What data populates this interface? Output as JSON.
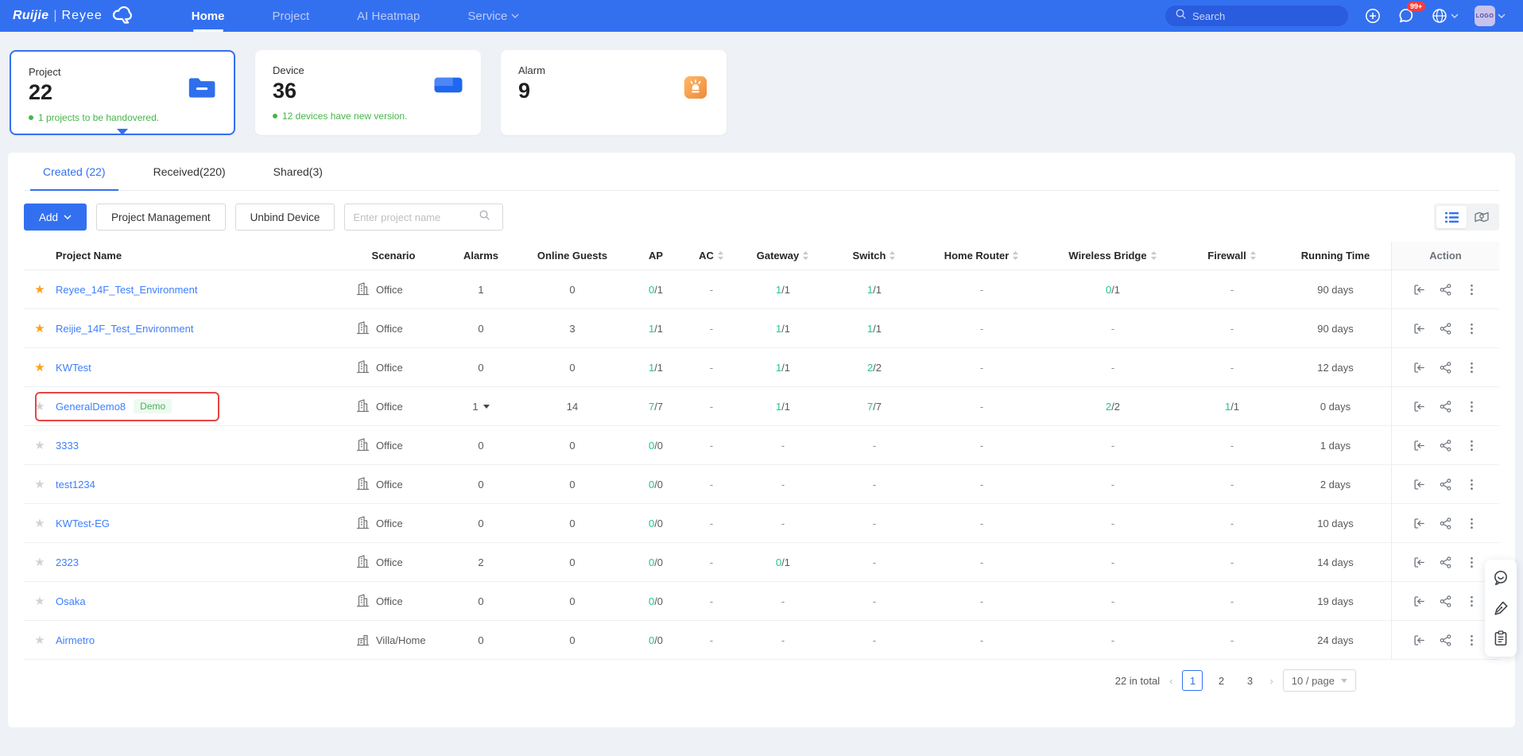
{
  "nav": {
    "brand": {
      "name1": "Ruijie",
      "sep": "|",
      "name2": "Reyee",
      "logo_icon": "cloud-mascot-icon"
    },
    "items": [
      {
        "label": "Home",
        "active": true
      },
      {
        "label": "Project",
        "active": false
      },
      {
        "label": "AI Heatmap",
        "active": false
      },
      {
        "label": "Service",
        "active": false,
        "dropdown": true
      }
    ],
    "search_placeholder": "Search",
    "right_icons": [
      "plus-circle-icon",
      "notification-icon",
      "globe-icon"
    ],
    "notification_badge": "99+",
    "avatar_text": "LOGO"
  },
  "cards": [
    {
      "label": "Project",
      "value": "22",
      "note": "1 projects to be handovered.",
      "icon": "folder-icon",
      "selected": true
    },
    {
      "label": "Device",
      "value": "36",
      "note": "12 devices have new version.",
      "icon": "device-icon",
      "selected": false
    },
    {
      "label": "Alarm",
      "value": "9",
      "note": "",
      "icon": "alarm-icon",
      "selected": false
    }
  ],
  "tabs": [
    {
      "label": "Created (22)",
      "active": true
    },
    {
      "label": "Received(220)",
      "active": false
    },
    {
      "label": "Shared(3)",
      "active": false
    }
  ],
  "toolbar": {
    "add_label": "Add",
    "project_management_label": "Project Management",
    "unbind_device_label": "Unbind Device",
    "search_placeholder": "Enter project name",
    "view_icons": [
      "list-view-icon",
      "map-view-icon"
    ]
  },
  "table": {
    "columns": [
      {
        "key": "name",
        "label": "Project Name",
        "sortable": false
      },
      {
        "key": "scenario",
        "label": "Scenario",
        "sortable": false
      },
      {
        "key": "alarms",
        "label": "Alarms",
        "sortable": false
      },
      {
        "key": "guests",
        "label": "Online Guests",
        "sortable": false
      },
      {
        "key": "ap",
        "label": "AP",
        "sortable": false
      },
      {
        "key": "ac",
        "label": "AC",
        "sortable": true
      },
      {
        "key": "gateway",
        "label": "Gateway",
        "sortable": true
      },
      {
        "key": "switch",
        "label": "Switch",
        "sortable": true
      },
      {
        "key": "home_router",
        "label": "Home Router",
        "sortable": true
      },
      {
        "key": "wireless_bridge",
        "label": "Wireless Bridge",
        "sortable": true
      },
      {
        "key": "firewall",
        "label": "Firewall",
        "sortable": true
      },
      {
        "key": "running_time",
        "label": "Running Time",
        "sortable": false
      },
      {
        "key": "action",
        "label": "Action",
        "sortable": false
      }
    ],
    "action_icons": [
      "enter-project-icon",
      "share-icon",
      "more-icon"
    ],
    "rows": [
      {
        "fav": true,
        "name": "Reyee_14F_Test_Environment",
        "badge": "",
        "highlight": false,
        "scenario": {
          "icon": "office-building-icon",
          "label": "Office"
        },
        "alarms": "1",
        "alarms_dropdown": false,
        "guests": "0",
        "ap": "0/1",
        "ac": "-",
        "gateway": "1/1",
        "switch": "1/1",
        "home_router": "-",
        "wireless_bridge": "0/1",
        "firewall": "-",
        "running_time": "90 days"
      },
      {
        "fav": true,
        "name": "Reijie_14F_Test_Environment",
        "badge": "",
        "highlight": false,
        "scenario": {
          "icon": "office-building-icon",
          "label": "Office"
        },
        "alarms": "0",
        "alarms_dropdown": false,
        "guests": "3",
        "ap": "1/1",
        "ac": "-",
        "gateway": "1/1",
        "switch": "1/1",
        "home_router": "-",
        "wireless_bridge": "-",
        "firewall": "-",
        "running_time": "90 days"
      },
      {
        "fav": true,
        "name": "KWTest",
        "badge": "",
        "highlight": false,
        "scenario": {
          "icon": "office-building-icon",
          "label": "Office"
        },
        "alarms": "0",
        "alarms_dropdown": false,
        "guests": "0",
        "ap": "1/1",
        "ac": "-",
        "gateway": "1/1",
        "switch": "2/2",
        "home_router": "-",
        "wireless_bridge": "-",
        "firewall": "-",
        "running_time": "12 days"
      },
      {
        "fav": false,
        "name": "GeneralDemo8",
        "badge": "Demo",
        "highlight": true,
        "scenario": {
          "icon": "office-building-icon",
          "label": "Office"
        },
        "alarms": "1",
        "alarms_dropdown": true,
        "guests": "14",
        "ap": "7/7",
        "ac": "-",
        "gateway": "1/1",
        "switch": "7/7",
        "home_router": "-",
        "wireless_bridge": "2/2",
        "firewall": "1/1",
        "running_time": "0 days"
      },
      {
        "fav": false,
        "name": "3333",
        "badge": "",
        "highlight": false,
        "scenario": {
          "icon": "office-building-icon",
          "label": "Office"
        },
        "alarms": "0",
        "alarms_dropdown": false,
        "guests": "0",
        "ap": "0/0",
        "ac": "-",
        "gateway": "-",
        "switch": "-",
        "home_router": "-",
        "wireless_bridge": "-",
        "firewall": "-",
        "running_time": "1 days"
      },
      {
        "fav": false,
        "name": "test1234",
        "badge": "",
        "highlight": false,
        "scenario": {
          "icon": "office-building-icon",
          "label": "Office"
        },
        "alarms": "0",
        "alarms_dropdown": false,
        "guests": "0",
        "ap": "0/0",
        "ac": "-",
        "gateway": "-",
        "switch": "-",
        "home_router": "-",
        "wireless_bridge": "-",
        "firewall": "-",
        "running_time": "2 days"
      },
      {
        "fav": false,
        "name": "KWTest-EG",
        "badge": "",
        "highlight": false,
        "scenario": {
          "icon": "office-building-icon",
          "label": "Office"
        },
        "alarms": "0",
        "alarms_dropdown": false,
        "guests": "0",
        "ap": "0/0",
        "ac": "-",
        "gateway": "-",
        "switch": "-",
        "home_router": "-",
        "wireless_bridge": "-",
        "firewall": "-",
        "running_time": "10 days"
      },
      {
        "fav": false,
        "name": "2323",
        "badge": "",
        "highlight": false,
        "scenario": {
          "icon": "office-building-icon",
          "label": "Office"
        },
        "alarms": "2",
        "alarms_dropdown": false,
        "guests": "0",
        "ap": "0/0",
        "ac": "-",
        "gateway": "0/1",
        "switch": "-",
        "home_router": "-",
        "wireless_bridge": "-",
        "firewall": "-",
        "running_time": "14 days"
      },
      {
        "fav": false,
        "name": "Osaka",
        "badge": "",
        "highlight": false,
        "scenario": {
          "icon": "office-building-icon",
          "label": "Office"
        },
        "alarms": "0",
        "alarms_dropdown": false,
        "guests": "0",
        "ap": "0/0",
        "ac": "-",
        "gateway": "-",
        "switch": "-",
        "home_router": "-",
        "wireless_bridge": "-",
        "firewall": "-",
        "running_time": "19 days"
      },
      {
        "fav": false,
        "name": "Airmetro",
        "badge": "",
        "highlight": false,
        "scenario": {
          "icon": "villa-home-icon",
          "label": "Villa/Home"
        },
        "alarms": "0",
        "alarms_dropdown": false,
        "guests": "0",
        "ap": "0/0",
        "ac": "-",
        "gateway": "-",
        "switch": "-",
        "home_router": "-",
        "wireless_bridge": "-",
        "firewall": "-",
        "running_time": "24 days"
      }
    ]
  },
  "pagination": {
    "total_text": "22 in total",
    "pages": [
      "1",
      "2",
      "3"
    ],
    "active_page": "1",
    "page_size": "10 / page"
  },
  "float_icons": [
    "chat-icon",
    "pen-icon",
    "clipboard-icon"
  ],
  "colors": {
    "nav_blue": "#3370f0",
    "link_blue": "#3d7fff",
    "count_green": "#21c493",
    "note_green": "#45b649",
    "star_orange": "#ff9f1a",
    "highlight_red": "#e64545",
    "badge_red": "#f43d3d"
  }
}
